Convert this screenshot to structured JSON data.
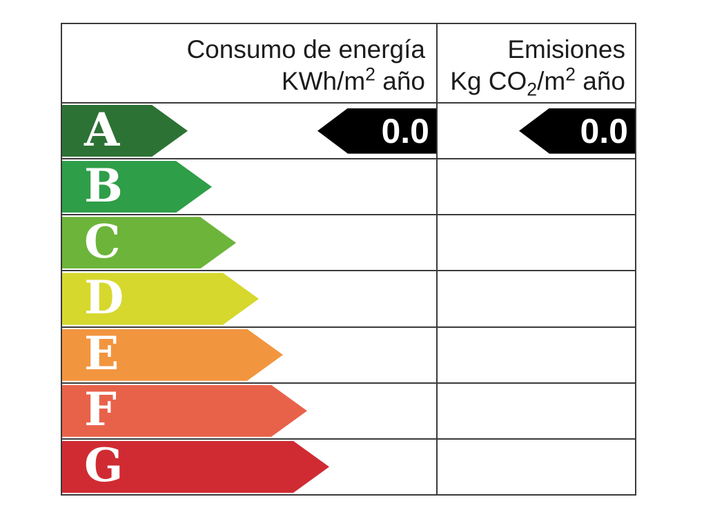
{
  "header": {
    "col1": {
      "line1": "Consumo de energía",
      "line2_pre": "KWh/m",
      "line2_sup": "2",
      "line2_post": " año"
    },
    "col2": {
      "line1": "Emisiones",
      "line2_pre": "Kg CO",
      "line2_sub": "2",
      "line2_mid": "/m",
      "line2_sup": "2",
      "line2_post": " año"
    }
  },
  "ratings": [
    {
      "label": "A",
      "color": "#2d7235",
      "arrow_width": 182
    },
    {
      "label": "B",
      "color": "#2f9e48",
      "arrow_width": 217
    },
    {
      "label": "C",
      "color": "#6cb43a",
      "arrow_width": 252
    },
    {
      "label": "D",
      "color": "#d6d82e",
      "arrow_width": 285
    },
    {
      "label": "E",
      "color": "#f2953f",
      "arrow_width": 320
    },
    {
      "label": "F",
      "color": "#e8624a",
      "arrow_width": 355
    },
    {
      "label": "G",
      "color": "#d02b33",
      "arrow_width": 387
    }
  ],
  "values": {
    "consumption": "0.0",
    "emissions": "0.0"
  },
  "colors": {
    "border": "#3a3a3a",
    "marker_background": "#000000",
    "marker_text": "#ffffff"
  },
  "chart_data": {
    "type": "table",
    "columns": [
      "Consumo de energía KWh/m2 año",
      "Emisiones Kg CO2/m2 año"
    ],
    "rating_scale": [
      "A",
      "B",
      "C",
      "D",
      "E",
      "F",
      "G"
    ],
    "indicated_rating": "A",
    "values": {
      "consumo_kwh_m2_ano": 0.0,
      "emisiones_kg_co2_m2_ano": 0.0
    },
    "legend_position": "none",
    "grid": "table-borders"
  }
}
